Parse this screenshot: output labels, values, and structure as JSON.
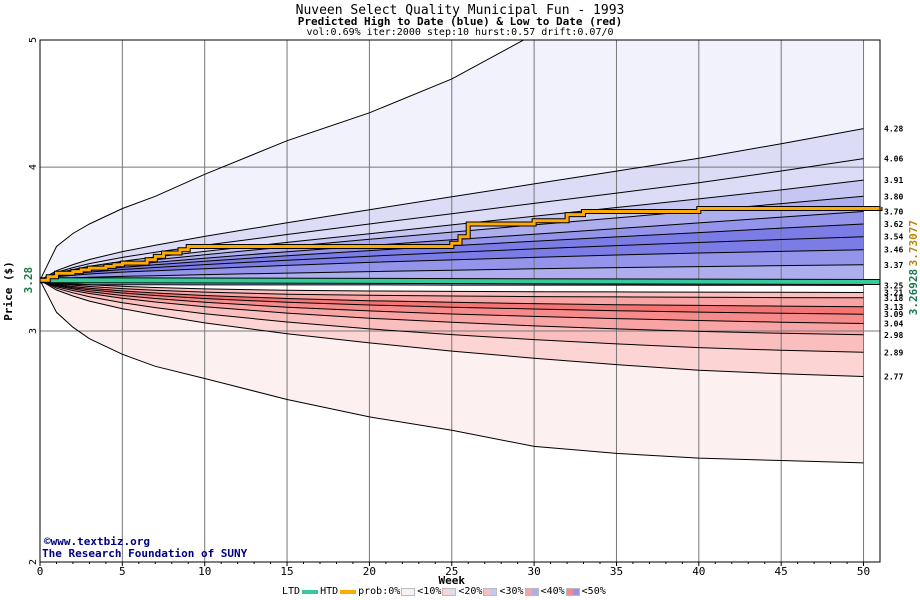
{
  "header": {
    "title": "Nuveen Select Quality Municipal Fun - 1993",
    "subtitle": "Predicted High to Date (blue) &  Low to Date (red)",
    "params": "vol:0.69% iter:2000 step:10 hurst:0.57 drift:0.07/0"
  },
  "credits": {
    "line1": "©www.textbiz.org",
    "line2": "The Research Foundation of SUNY"
  },
  "legend": {
    "ltd": "LTD",
    "htd": "HTD",
    "prob": "prob:0%",
    "b10": "<10%",
    "b20": "<20%",
    "b30": "<30%",
    "b40": "<40%",
    "b50": "<50%"
  },
  "colors": {
    "ltd": "#33cc99",
    "htd": "#ffaa00",
    "blue_bands": [
      "#f2f2fc",
      "#dcdcf6",
      "#c6c6f2",
      "#aeaeee",
      "#9494ea",
      "#7c7ce6"
    ],
    "red_bands": [
      "#fdf0f0",
      "#fcd4d4",
      "#fbbebe",
      "#f9a4a4",
      "#f78a8a",
      "#f57474"
    ]
  },
  "chart_data": {
    "type": "line",
    "xlabel": "Week",
    "ylabel": "Price ($)",
    "xlim": [
      0,
      51
    ],
    "ylim": [
      2,
      5
    ],
    "yscale": "log",
    "xticks": [
      0,
      5,
      10,
      15,
      20,
      25,
      30,
      35,
      40,
      45,
      50
    ],
    "yticks": [
      2,
      3,
      4,
      5
    ],
    "grid": true,
    "start_price": "3.28",
    "start_value": 3.28,
    "right_labels": {
      "htd_final": "3.73077",
      "ltd_final": "3.26928"
    },
    "htd_path": {
      "x": [
        0,
        0.5,
        1,
        1.5,
        2,
        2.5,
        3,
        4,
        4.5,
        5,
        6,
        6.5,
        7,
        7.5,
        8,
        8.5,
        9,
        25,
        25.5,
        26,
        30,
        32,
        33,
        40,
        51
      ],
      "y": [
        3.28,
        3.3,
        3.32,
        3.32,
        3.33,
        3.34,
        3.35,
        3.36,
        3.37,
        3.38,
        3.38,
        3.4,
        3.42,
        3.44,
        3.44,
        3.46,
        3.48,
        3.5,
        3.54,
        3.62,
        3.64,
        3.68,
        3.7,
        3.72,
        3.73
      ]
    },
    "ltd_path": {
      "x": [
        0,
        51
      ],
      "y": [
        3.28,
        3.26928
      ]
    },
    "upper_quantiles": {
      "x": [
        0,
        1,
        2,
        3,
        5,
        7,
        10,
        15,
        20,
        25,
        30,
        35,
        40,
        45,
        50
      ],
      "series": [
        {
          "final_label": "3.25",
          "values": [
            3.28,
            3.26,
            3.255,
            3.254,
            3.254,
            3.254,
            3.253,
            3.253,
            3.253,
            3.252,
            3.252,
            3.252,
            3.251,
            3.251,
            3.25
          ]
        },
        {
          "final_label": "3.37",
          "values": [
            3.28,
            3.289,
            3.293,
            3.297,
            3.302,
            3.306,
            3.312,
            3.321,
            3.33,
            3.338,
            3.346,
            3.353,
            3.359,
            3.365,
            3.37
          ]
        },
        {
          "final_label": "3.46",
          "values": [
            3.28,
            3.3,
            3.309,
            3.316,
            3.327,
            3.335,
            3.347,
            3.366,
            3.384,
            3.399,
            3.414,
            3.428,
            3.44,
            3.45,
            3.46
          ]
        },
        {
          "final_label": "3.54",
          "values": [
            3.28,
            3.304,
            3.317,
            3.327,
            3.342,
            3.354,
            3.371,
            3.397,
            3.421,
            3.444,
            3.465,
            3.485,
            3.504,
            3.523,
            3.54
          ]
        },
        {
          "final_label": "3.62",
          "values": [
            3.28,
            3.308,
            3.324,
            3.336,
            3.355,
            3.37,
            3.391,
            3.424,
            3.455,
            3.484,
            3.512,
            3.539,
            3.566,
            3.594,
            3.62
          ]
        },
        {
          "final_label": "3.70",
          "values": [
            3.28,
            3.312,
            3.33,
            3.344,
            3.366,
            3.384,
            3.409,
            3.448,
            3.485,
            3.521,
            3.556,
            3.591,
            3.627,
            3.664,
            3.7
          ]
        },
        {
          "final_label": "3.80",
          "values": [
            3.28,
            3.315,
            3.335,
            3.352,
            3.378,
            3.4,
            3.43,
            3.478,
            3.524,
            3.569,
            3.614,
            3.659,
            3.705,
            3.752,
            3.8
          ]
        },
        {
          "final_label": "3.91",
          "values": [
            3.28,
            3.319,
            3.342,
            3.361,
            3.391,
            3.416,
            3.45,
            3.505,
            3.559,
            3.614,
            3.67,
            3.726,
            3.783,
            3.843,
            3.91
          ]
        },
        {
          "final_label": "4.06",
          "values": [
            3.28,
            3.325,
            3.353,
            3.377,
            3.414,
            3.445,
            3.487,
            3.554,
            3.62,
            3.686,
            3.753,
            3.822,
            3.892,
            3.973,
            4.06
          ]
        },
        {
          "final_label": "4.28",
          "values": [
            3.28,
            3.335,
            3.371,
            3.401,
            3.449,
            3.488,
            3.542,
            3.628,
            3.712,
            3.797,
            3.884,
            3.972,
            4.063,
            4.168,
            4.28
          ]
        },
        {
          "final_label": "",
          "values": [
            3.28,
            3.48,
            3.56,
            3.62,
            3.72,
            3.8,
            3.95,
            4.19,
            4.4,
            4.67,
            5.05,
            5.35,
            5.6,
            5.85,
            6.1
          ]
        }
      ]
    },
    "lower_quantiles": {
      "x": [
        0,
        1,
        2,
        3,
        5,
        7,
        10,
        15,
        20,
        25,
        30,
        35,
        40,
        45,
        50
      ],
      "series": [
        {
          "final_label": "3.21",
          "values": [
            3.28,
            3.267,
            3.26,
            3.254,
            3.245,
            3.238,
            3.23,
            3.222,
            3.218,
            3.216,
            3.214,
            3.213,
            3.212,
            3.211,
            3.21
          ]
        },
        {
          "final_label": "3.18",
          "values": [
            3.28,
            3.262,
            3.252,
            3.244,
            3.232,
            3.223,
            3.212,
            3.2,
            3.194,
            3.19,
            3.187,
            3.185,
            3.183,
            3.181,
            3.18
          ]
        },
        {
          "final_label": "3.13",
          "values": [
            3.28,
            3.257,
            3.244,
            3.234,
            3.219,
            3.207,
            3.193,
            3.176,
            3.164,
            3.155,
            3.148,
            3.142,
            3.138,
            3.134,
            3.13
          ]
        },
        {
          "final_label": "3.09",
          "values": [
            3.28,
            3.253,
            3.237,
            3.225,
            3.207,
            3.193,
            3.176,
            3.155,
            3.14,
            3.128,
            3.118,
            3.109,
            3.101,
            3.095,
            3.09
          ]
        },
        {
          "final_label": "3.04",
          "values": [
            3.28,
            3.248,
            3.23,
            3.215,
            3.193,
            3.176,
            3.155,
            3.128,
            3.108,
            3.091,
            3.078,
            3.066,
            3.056,
            3.047,
            3.04
          ]
        },
        {
          "final_label": "2.98",
          "values": [
            3.28,
            3.242,
            3.221,
            3.204,
            3.178,
            3.157,
            3.131,
            3.096,
            3.068,
            3.046,
            3.027,
            3.011,
            2.998,
            2.988,
            2.98
          ]
        },
        {
          "final_label": "2.89",
          "values": [
            3.28,
            3.234,
            3.208,
            3.186,
            3.153,
            3.126,
            3.092,
            3.048,
            3.011,
            2.981,
            2.955,
            2.933,
            2.914,
            2.9,
            2.89
          ]
        },
        {
          "final_label": "2.77",
          "values": [
            3.28,
            3.224,
            3.19,
            3.162,
            3.12,
            3.087,
            3.043,
            2.986,
            2.938,
            2.896,
            2.86,
            2.828,
            2.8,
            2.783,
            2.77
          ]
        },
        {
          "final_label": "",
          "values": [
            3.28,
            3.1,
            3.02,
            2.96,
            2.88,
            2.82,
            2.76,
            2.66,
            2.58,
            2.52,
            2.45,
            2.42,
            2.4,
            2.39,
            2.38
          ]
        }
      ]
    }
  }
}
